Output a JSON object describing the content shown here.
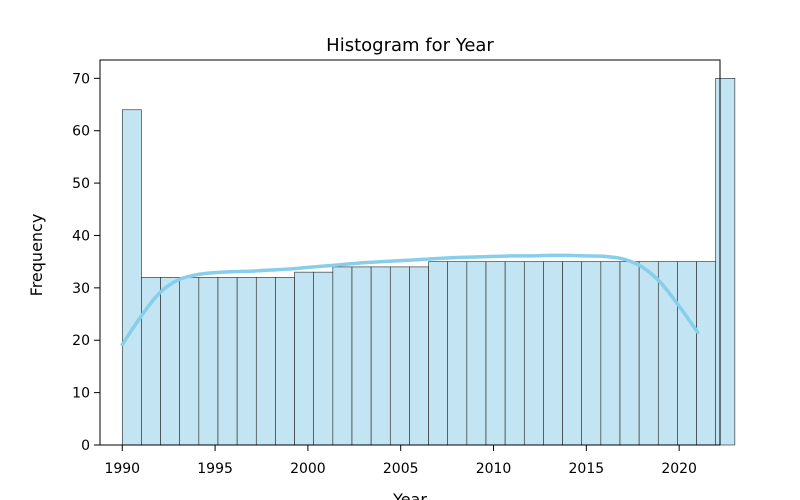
{
  "chart_data": {
    "type": "bar",
    "title": "Histogram for Year",
    "xlabel": "Year",
    "ylabel": "Frequency",
    "xlim": [
      1988.8,
      2022.2
    ],
    "ylim": [
      0,
      73.5
    ],
    "x_ticks": [
      1990,
      1995,
      2000,
      2005,
      2010,
      2015,
      2020
    ],
    "y_ticks": [
      0,
      10,
      20,
      30,
      40,
      50,
      60,
      70
    ],
    "bin_start": 1990,
    "bin_width": 1.03125,
    "values": [
      64,
      32,
      32,
      32,
      32,
      32,
      32,
      32,
      32,
      33,
      33,
      34,
      34,
      34,
      34,
      34,
      35,
      35,
      35,
      35,
      35,
      35,
      35,
      35,
      35,
      35,
      35,
      35,
      35,
      35,
      35,
      70
    ],
    "kde": {
      "x": [
        1990,
        1991,
        1992,
        1993,
        1994,
        1995,
        1996,
        1997,
        1998,
        1999,
        2000,
        2001,
        2002,
        2003,
        2004,
        2005,
        2006,
        2007,
        2008,
        2009,
        2010,
        2011,
        2012,
        2013,
        2014,
        2015,
        2016,
        2017,
        2018,
        2019,
        2020,
        2021
      ],
      "y": [
        19.2,
        24.5,
        29.0,
        31.5,
        32.5,
        32.9,
        33.1,
        33.2,
        33.4,
        33.6,
        33.9,
        34.2,
        34.5,
        34.8,
        35.0,
        35.2,
        35.4,
        35.6,
        35.8,
        35.9,
        36.0,
        36.1,
        36.1,
        36.2,
        36.2,
        36.1,
        36.0,
        35.5,
        34.0,
        31.0,
        26.5,
        21.5
      ]
    },
    "colors": {
      "bar_fill": "#c3e4f2",
      "bar_edge": "#222222",
      "kde_line": "#87ceeb"
    },
    "grid": false,
    "legend": "none"
  }
}
